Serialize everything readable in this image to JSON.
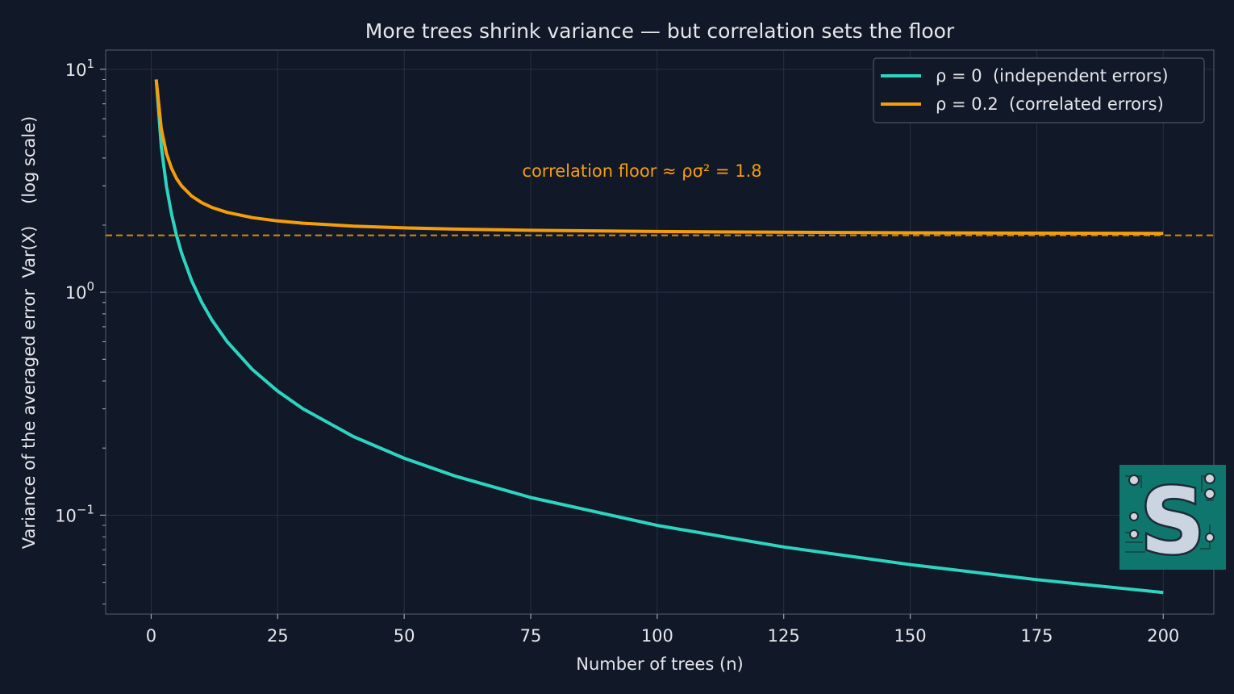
{
  "chart_data": {
    "type": "line",
    "title": "More trees shrink variance — but correlation sets the floor",
    "xlabel": "Number of trees  (n)",
    "ylabel": "Variance of the averaged error  Var(X)    (log scale)",
    "x_ticks": [
      0,
      25,
      50,
      75,
      100,
      125,
      150,
      175,
      200
    ],
    "x_tick_labels": [
      "0",
      "25",
      "50",
      "75",
      "100",
      "125",
      "150",
      "175",
      "200"
    ],
    "y_ticks": [
      {
        "base": "10",
        "exp": "1",
        "value": 10
      },
      {
        "base": "10",
        "exp": "0",
        "value": 1
      },
      {
        "base": "10",
        "exp": "−1",
        "value": 0.1
      }
    ],
    "xlim": [
      -9,
      210
    ],
    "ylim": [
      0.036,
      12.2
    ],
    "y_scale": "log",
    "grid": true,
    "legend_position": "top-right",
    "series": [
      {
        "name": "ρ = 0  (independent errors)",
        "color": "#2dd4bf",
        "x": [
          1,
          2,
          3,
          4,
          5,
          6,
          8,
          10,
          12,
          15,
          20,
          25,
          30,
          40,
          50,
          60,
          75,
          100,
          125,
          150,
          175,
          200
        ],
        "y": [
          9.0,
          4.5,
          3.0,
          2.25,
          1.8,
          1.5,
          1.125,
          0.9,
          0.75,
          0.6,
          0.45,
          0.36,
          0.3,
          0.225,
          0.18,
          0.15,
          0.12,
          0.09,
          0.072,
          0.06,
          0.0514,
          0.045
        ]
      },
      {
        "name": "ρ = 0.2  (correlated errors)",
        "color": "#f59e0b",
        "x": [
          1,
          2,
          3,
          4,
          5,
          6,
          8,
          10,
          12,
          15,
          20,
          25,
          30,
          40,
          50,
          60,
          75,
          100,
          125,
          150,
          175,
          200
        ],
        "y": [
          9.0,
          5.4,
          4.2,
          3.6,
          3.24,
          3.0,
          2.7,
          2.52,
          2.4,
          2.28,
          2.16,
          2.088,
          2.04,
          1.98,
          1.944,
          1.92,
          1.896,
          1.872,
          1.858,
          1.848,
          1.841,
          1.836
        ]
      }
    ],
    "reference_line": {
      "y": 1.8,
      "color": "#f59e0b",
      "style": "dashed"
    },
    "annotation": {
      "text": "correlation floor ≈ ρσ² = 1.8",
      "x": 97,
      "y": 3.3,
      "color": "#f59e0b"
    }
  },
  "logo": {
    "letter": "S",
    "description": "circuit-board S logo"
  }
}
